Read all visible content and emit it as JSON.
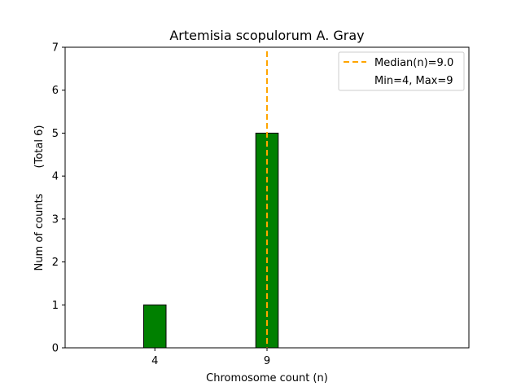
{
  "chart_data": {
    "type": "bar",
    "title": "Artemisia scopulorum A. Gray",
    "xlabel": "Chromosome count (n)",
    "ylabel": "Num of counts",
    "ylabel_secondary": "(Total 6)",
    "x_ticks": [
      4,
      9
    ],
    "y_ticks": [
      0,
      1,
      2,
      3,
      4,
      5,
      6,
      7
    ],
    "ylim": [
      0,
      7
    ],
    "xlim": [
      0,
      18
    ],
    "bars": [
      {
        "x": 4,
        "value": 1
      },
      {
        "x": 9,
        "value": 5
      }
    ],
    "bar_width": 1,
    "bar_color": "#008000",
    "bar_edge_color": "#000000",
    "baseline_xlim": [
      0,
      12
    ],
    "median": 9.0,
    "median_color": "#ffa500",
    "legend": {
      "position": "top-right",
      "entries": [
        "Median(n)=9.0",
        "Min=4, Max=9"
      ]
    },
    "grid": false
  }
}
